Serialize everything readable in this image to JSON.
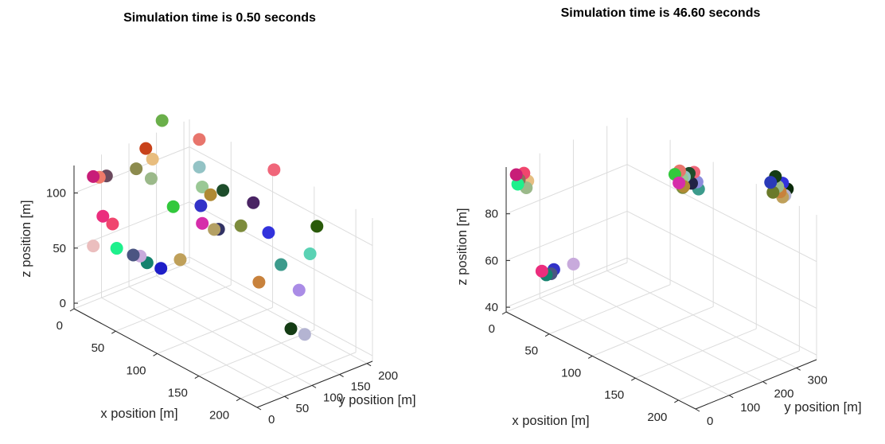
{
  "chart_data": [
    {
      "type": "scatter",
      "title": "Simulation time is 0.50 seconds",
      "xlabel": "x position [m]",
      "ylabel": "y position [m]",
      "zlabel": "z position [m]",
      "xlim": [
        0,
        220
      ],
      "ylim": [
        0,
        210
      ],
      "zlim": [
        -5,
        125
      ],
      "xticks": [
        0,
        50,
        100,
        150,
        200
      ],
      "yticks": [
        0,
        50,
        100,
        150,
        200
      ],
      "zticks": [
        0,
        50,
        100
      ],
      "grid": true,
      "points": [
        {
          "x": 35,
          "y": 175,
          "z": 128,
          "color": "#e8756c"
        },
        {
          "x": 20,
          "y": 130,
          "z": 148,
          "color": "#6aaf4a"
        },
        {
          "x": 15,
          "y": 108,
          "z": 125,
          "color": "#c8421a"
        },
        {
          "x": 25,
          "y": 105,
          "z": 120,
          "color": "#e8bd7e"
        },
        {
          "x": 45,
          "y": 160,
          "z": 110,
          "color": "#93c3c5"
        },
        {
          "x": 105,
          "y": 205,
          "z": 123,
          "color": "#f0667a"
        },
        {
          "x": 70,
          "y": 165,
          "z": 98,
          "color": "#1e4d2b"
        },
        {
          "x": 12,
          "y": 95,
          "z": 108,
          "color": "#8c8b4e"
        },
        {
          "x": 28,
          "y": 98,
          "z": 105,
          "color": "#9bb98a"
        },
        {
          "x": 55,
          "y": 150,
          "z": 98,
          "color": "#9ac895"
        },
        {
          "x": 65,
          "y": 150,
          "z": 95,
          "color": "#b08a34"
        },
        {
          "x": 90,
          "y": 190,
          "z": 90,
          "color": "#4a2464"
        },
        {
          "x": 6,
          "y": 50,
          "z": 108,
          "color": "#6b4a5e"
        },
        {
          "x": 0,
          "y": 35,
          "z": 108,
          "color": "#c81d78"
        },
        {
          "x": 4,
          "y": 40,
          "z": 108,
          "color": "#f07a6a"
        },
        {
          "x": 60,
          "y": 140,
          "z": 85,
          "color": "#3232c8"
        },
        {
          "x": 40,
          "y": 120,
          "z": 80,
          "color": "#32c83c"
        },
        {
          "x": 65,
          "y": 135,
          "z": 72,
          "color": "#d62daa"
        },
        {
          "x": 78,
          "y": 145,
          "z": 70,
          "color": "#323264"
        },
        {
          "x": 76,
          "y": 140,
          "z": 70,
          "color": "#b4a064"
        },
        {
          "x": 85,
          "y": 175,
          "z": 70,
          "color": "#7d8c3c"
        },
        {
          "x": 150,
          "y": 215,
          "z": 88,
          "color": "#2a5a0a"
        },
        {
          "x": 105,
          "y": 195,
          "z": 68,
          "color": "#3232dc"
        },
        {
          "x": 5,
          "y": 45,
          "z": 72,
          "color": "#eb2d7d"
        },
        {
          "x": 10,
          "y": 55,
          "z": 65,
          "color": "#f0466e"
        },
        {
          "x": 145,
          "y": 210,
          "z": 62,
          "color": "#5ad2b4"
        },
        {
          "x": 120,
          "y": 195,
          "z": 45,
          "color": "#3c9b8c"
        },
        {
          "x": 0,
          "y": 35,
          "z": 45,
          "color": "#ebbebe"
        },
        {
          "x": 15,
          "y": 55,
          "z": 45,
          "color": "#1ef08c"
        },
        {
          "x": 55,
          "y": 110,
          "z": 40,
          "color": "#bfa05a"
        },
        {
          "x": 30,
          "y": 75,
          "z": 40,
          "color": "#c8aadc"
        },
        {
          "x": 25,
          "y": 70,
          "z": 40,
          "color": "#4b5582"
        },
        {
          "x": 35,
          "y": 80,
          "z": 35,
          "color": "#14826e"
        },
        {
          "x": 45,
          "y": 90,
          "z": 32,
          "color": "#1e1ec8"
        },
        {
          "x": 110,
          "y": 170,
          "z": 30,
          "color": "#c8823c"
        },
        {
          "x": 145,
          "y": 190,
          "z": 33,
          "color": "#aa8ce6"
        },
        {
          "x": 155,
          "y": 160,
          "z": 8,
          "color": "#143c14"
        },
        {
          "x": 165,
          "y": 170,
          "z": 5,
          "color": "#b4b4d2"
        }
      ]
    },
    {
      "type": "scatter",
      "title": "Simulation time is 46.60 seconds",
      "xlabel": "x position [m]",
      "ylabel": "y position [m]",
      "zlabel": "z position [m]",
      "xlim": [
        0,
        220
      ],
      "ylim": [
        0,
        360
      ],
      "zlim": [
        38,
        100
      ],
      "xticks": [
        0,
        50,
        100,
        150,
        200
      ],
      "yticks": [
        0,
        100,
        200,
        300
      ],
      "zticks": [
        40,
        60,
        80
      ],
      "grid": true,
      "points": [
        {
          "x": 5,
          "y": 40,
          "z": 96,
          "color": "#f0466e"
        },
        {
          "x": 0,
          "y": 30,
          "z": 95,
          "color": "#c81d78"
        },
        {
          "x": 2,
          "y": 34,
          "z": 93,
          "color": "#8c6e5a"
        },
        {
          "x": 8,
          "y": 44,
          "z": 93,
          "color": "#e6be82"
        },
        {
          "x": 1,
          "y": 32,
          "z": 91,
          "color": "#1ef08c"
        },
        {
          "x": 7,
          "y": 42,
          "z": 90,
          "color": "#9bb98a"
        },
        {
          "x": 45,
          "y": 85,
          "z": 62,
          "color": "#c8aadc"
        },
        {
          "x": 30,
          "y": 65,
          "z": 58,
          "color": "#3232c8"
        },
        {
          "x": 20,
          "y": 55,
          "z": 56,
          "color": "#eb2d7d"
        },
        {
          "x": 28,
          "y": 62,
          "z": 56,
          "color": "#4b5582"
        },
        {
          "x": 24,
          "y": 58,
          "z": 55,
          "color": "#14826e"
        },
        {
          "x": 100,
          "y": 260,
          "z": 102,
          "color": "#e8756c"
        },
        {
          "x": 108,
          "y": 268,
          "z": 102,
          "color": "#1e4d2b"
        },
        {
          "x": 104,
          "y": 264,
          "z": 100,
          "color": "#93c3c5"
        },
        {
          "x": 112,
          "y": 272,
          "z": 103,
          "color": "#f0667a"
        },
        {
          "x": 96,
          "y": 256,
          "z": 100,
          "color": "#32c83c"
        },
        {
          "x": 102,
          "y": 262,
          "z": 99,
          "color": "#9ac895"
        },
        {
          "x": 114,
          "y": 276,
          "z": 99,
          "color": "#8c8cdc"
        },
        {
          "x": 110,
          "y": 270,
          "z": 98,
          "color": "#222244"
        },
        {
          "x": 100,
          "y": 258,
          "z": 97,
          "color": "#d62daa"
        },
        {
          "x": 104,
          "y": 262,
          "z": 96,
          "color": "#b08a34"
        },
        {
          "x": 115,
          "y": 278,
          "z": 96,
          "color": "#3c9b8c"
        },
        {
          "x": 102,
          "y": 264,
          "z": 95,
          "color": "#7d8c3c"
        },
        {
          "x": 180,
          "y": 340,
          "z": 110,
          "color": "#143c14"
        },
        {
          "x": 186,
          "y": 346,
          "z": 108,
          "color": "#3232dc"
        },
        {
          "x": 176,
          "y": 336,
          "z": 107,
          "color": "#2a3ab8"
        },
        {
          "x": 182,
          "y": 342,
          "z": 106,
          "color": "#9bb98a"
        },
        {
          "x": 190,
          "y": 350,
          "z": 106,
          "color": "#0a2a0a"
        },
        {
          "x": 184,
          "y": 344,
          "z": 104,
          "color": "#c8823c"
        },
        {
          "x": 188,
          "y": 348,
          "z": 103,
          "color": "#b4b4d2"
        },
        {
          "x": 178,
          "y": 338,
          "z": 103,
          "color": "#6a7a2a"
        },
        {
          "x": 186,
          "y": 346,
          "z": 102,
          "color": "#bfa05a"
        }
      ]
    }
  ]
}
